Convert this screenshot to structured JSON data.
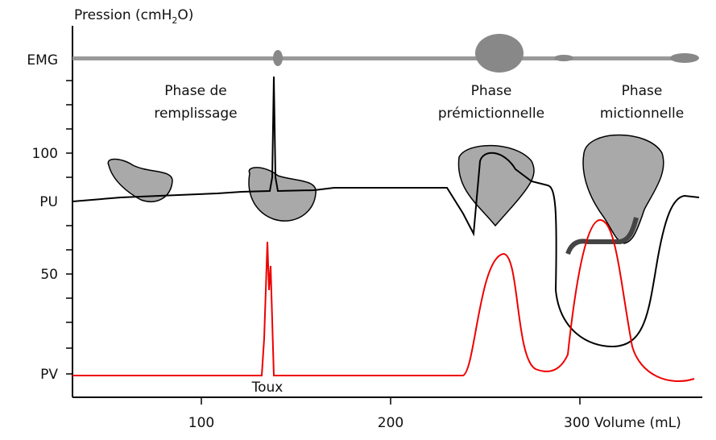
{
  "axis": {
    "y_title": {
      "before": "Pression (cmH",
      "sub": "2",
      "after": "O)"
    },
    "y_labels": [
      "EMG",
      "100",
      "PU",
      "50",
      "PV"
    ],
    "x_labels": [
      "100",
      "200",
      "300 Volume (mL)"
    ]
  },
  "phases": [
    {
      "lines": [
        "Phase de",
        "remplissage"
      ]
    },
    {
      "lines": [
        "Phase",
        "prémictionnelle"
      ]
    },
    {
      "lines": [
        "Phase",
        "mictionnelle"
      ]
    }
  ],
  "annotations": {
    "cough": "Toux"
  }
}
